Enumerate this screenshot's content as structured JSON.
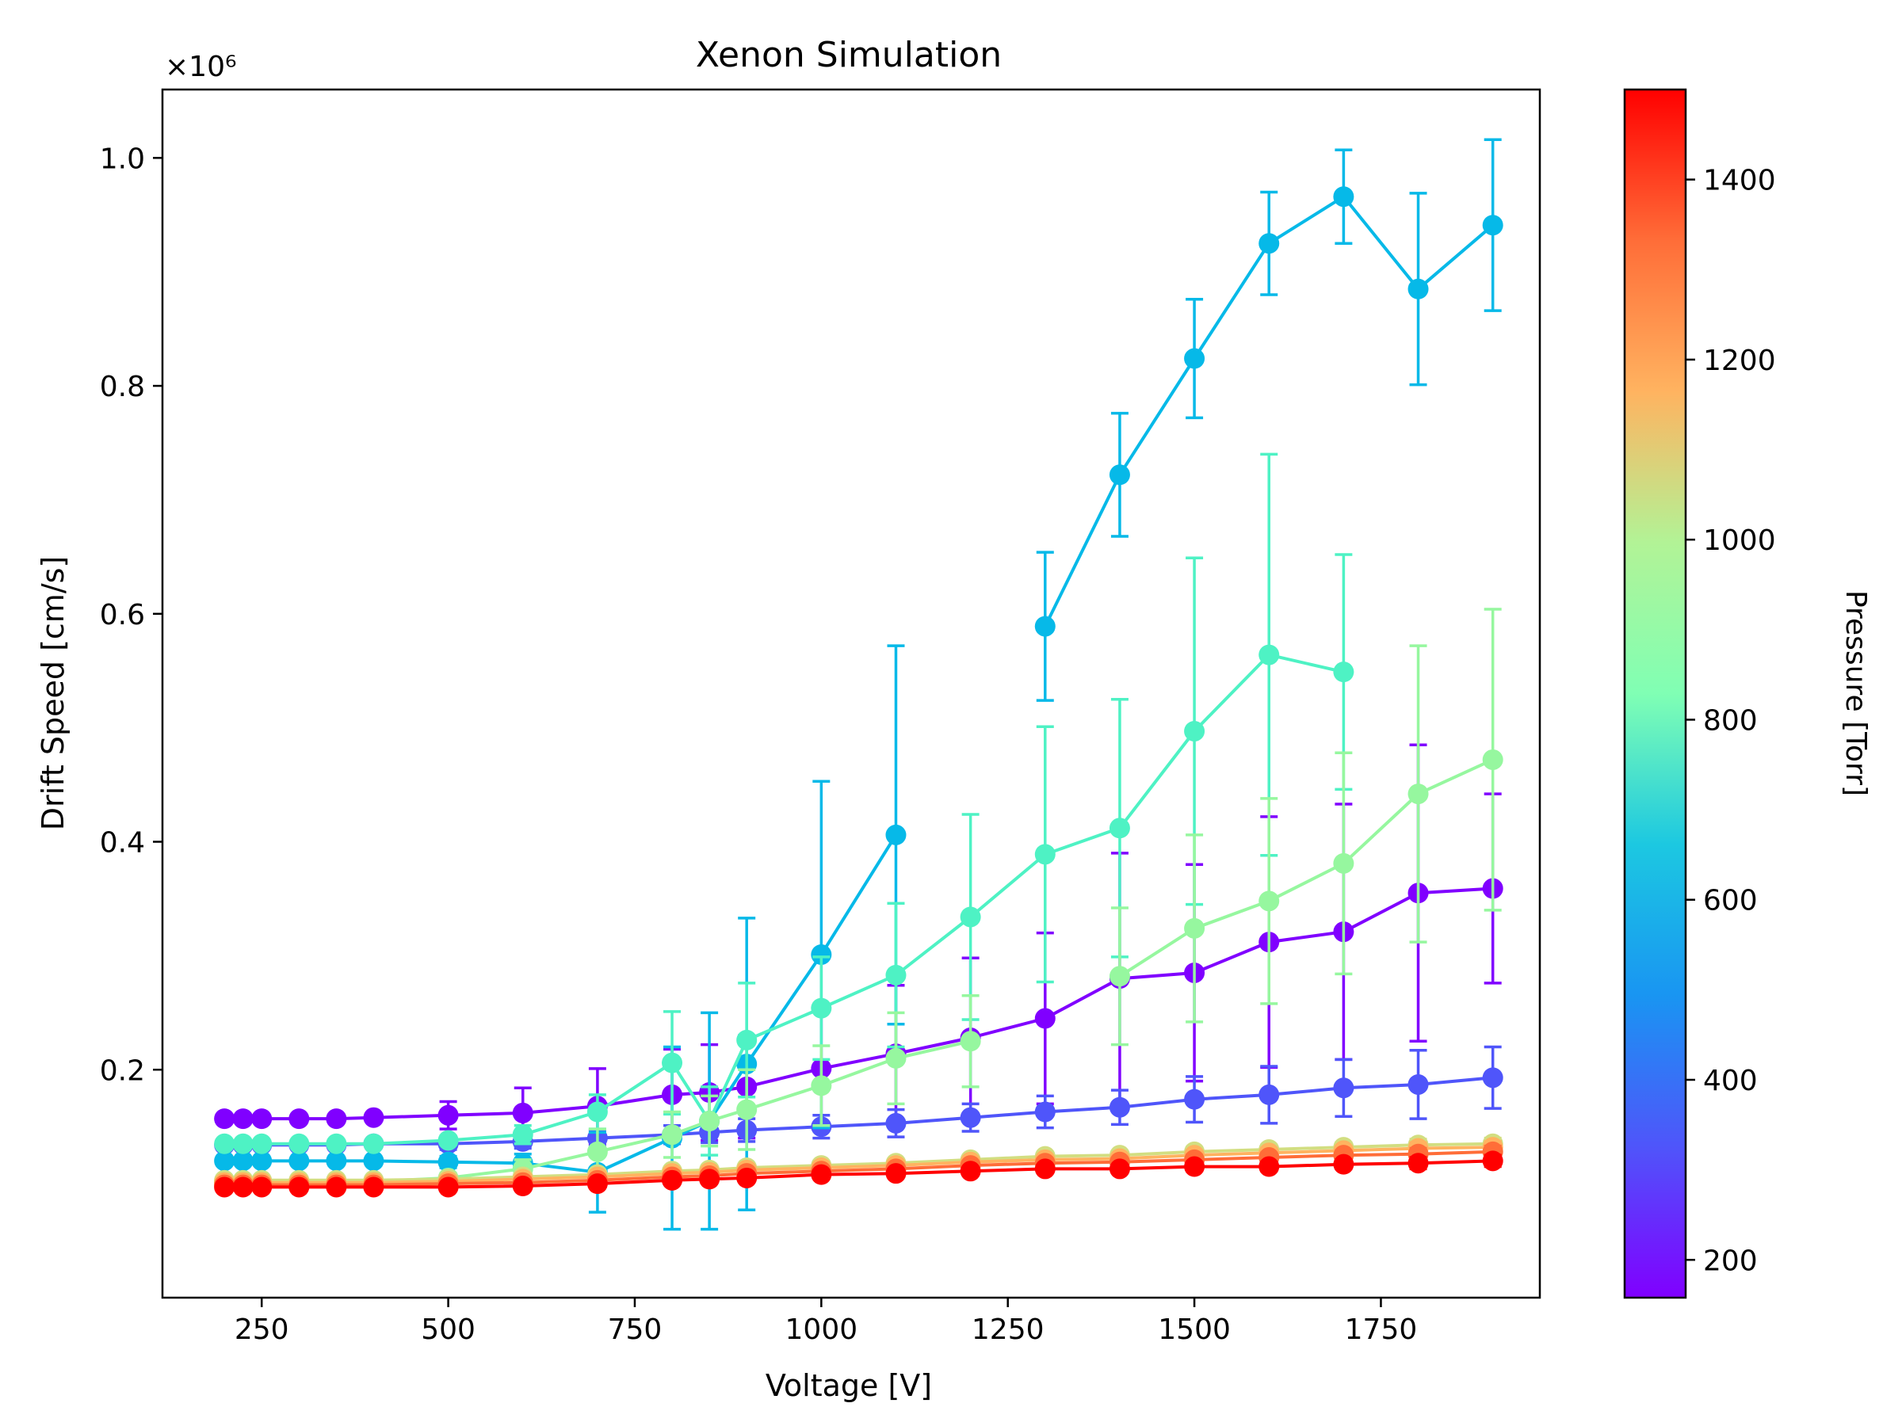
{
  "chart_data": {
    "type": "line",
    "title": "Xenon Simulation",
    "xlabel": "Voltage [V]",
    "ylabel": "Drift Speed [cm/s]",
    "y_scale_label": "×10⁶",
    "xlim": [
      117,
      1963
    ],
    "ylim": [
      0.0,
      1.06
    ],
    "x_ticks": [
      250,
      500,
      750,
      1000,
      1250,
      1500,
      1750
    ],
    "y_ticks": [
      0.2,
      0.4,
      0.6,
      0.8,
      1.0
    ],
    "y_tick_labels": [
      "0.2",
      "0.4",
      "0.6",
      "0.8",
      "1.0"
    ],
    "grid": false,
    "colorbar": {
      "label": "Pressure [Torr]",
      "min": 158,
      "max": 1500,
      "ticks": [
        200,
        400,
        600,
        800,
        1000,
        1200,
        1400
      ],
      "colormap": "rainbow"
    },
    "x": [
      200,
      225,
      250,
      300,
      350,
      400,
      500,
      600,
      700,
      800,
      850,
      900,
      1000,
      1100,
      1200,
      1300,
      1400,
      1500,
      1600,
      1700,
      1800,
      1900
    ],
    "series": [
      {
        "pressure": 200,
        "color": "#8000ff",
        "values": [
          0.157,
          0.157,
          0.157,
          0.157,
          0.157,
          0.158,
          0.16,
          0.162,
          0.168,
          0.178,
          0.18,
          0.185,
          0.201,
          0.214,
          0.228,
          0.245,
          0.28,
          0.285,
          0.312,
          0.321,
          0.355,
          0.359
        ],
        "errors": [
          0.002,
          0.002,
          0.002,
          0.002,
          0.002,
          0.003,
          0.012,
          0.022,
          0.033,
          0.04,
          0.042,
          0.045,
          0.05,
          0.06,
          0.07,
          0.075,
          0.11,
          0.095,
          0.11,
          0.112,
          0.13,
          0.083
        ]
      },
      {
        "pressure": 300,
        "color": "#4f55fa",
        "values": [
          0.134,
          0.134,
          0.134,
          0.134,
          0.134,
          0.135,
          0.135,
          0.137,
          0.14,
          0.143,
          0.145,
          0.147,
          0.15,
          0.153,
          0.158,
          0.163,
          0.167,
          0.174,
          0.178,
          0.184,
          0.187,
          0.193
        ],
        "errors": [
          0.003,
          0.003,
          0.003,
          0.003,
          0.003,
          0.003,
          0.005,
          0.006,
          0.007,
          0.008,
          0.009,
          0.01,
          0.01,
          0.012,
          0.012,
          0.014,
          0.015,
          0.02,
          0.025,
          0.025,
          0.03,
          0.027
        ]
      },
      {
        "pressure": 450,
        "color": "#06b9e8",
        "values": [
          0.12,
          0.12,
          0.12,
          0.12,
          0.12,
          0.12,
          0.119,
          0.118,
          0.11,
          0.14,
          0.155,
          0.205,
          0.301,
          0.406,
          null,
          0.589,
          0.722,
          0.824,
          0.925,
          0.966,
          0.885,
          0.941
        ],
        "errors": [
          0.003,
          0.003,
          0.003,
          0.003,
          0.003,
          0.003,
          0.005,
          0.008,
          0.035,
          0.08,
          0.095,
          0.128,
          0.152,
          0.166,
          null,
          0.065,
          0.054,
          0.052,
          0.045,
          0.041,
          0.084,
          0.075
        ]
      },
      {
        "pressure": 650,
        "color": "#4ef2c4",
        "values": [
          0.135,
          0.135,
          0.135,
          0.135,
          0.135,
          0.135,
          0.138,
          0.143,
          0.163,
          0.206,
          0.155,
          0.226,
          0.254,
          0.283,
          0.334,
          0.389,
          0.412,
          0.497,
          0.564,
          0.549,
          null,
          null
        ],
        "errors": [
          0.003,
          0.003,
          0.003,
          0.003,
          0.003,
          0.003,
          0.004,
          0.008,
          0.015,
          0.045,
          0.03,
          0.05,
          0.045,
          0.063,
          0.09,
          0.112,
          0.113,
          0.152,
          0.176,
          0.103,
          null,
          null
        ]
      },
      {
        "pressure": 850,
        "color": "#96f79f",
        "values": [
          0.102,
          0.102,
          0.102,
          0.102,
          0.102,
          0.102,
          0.105,
          0.113,
          0.128,
          0.143,
          0.155,
          0.165,
          0.186,
          0.21,
          0.225,
          null,
          0.282,
          0.324,
          0.348,
          0.381,
          0.442,
          0.472
        ],
        "errors": [
          0.002,
          0.002,
          0.002,
          0.002,
          0.002,
          0.002,
          0.004,
          0.008,
          0.02,
          0.02,
          0.022,
          0.035,
          0.035,
          0.04,
          0.04,
          null,
          0.06,
          0.082,
          0.09,
          0.097,
          0.13,
          0.132
        ]
      },
      {
        "pressure": 1050,
        "color": "#d2de81",
        "values": [
          0.103,
          0.103,
          0.103,
          0.103,
          0.103,
          0.103,
          0.104,
          0.106,
          0.108,
          0.111,
          0.112,
          0.114,
          0.116,
          0.118,
          0.121,
          0.124,
          0.125,
          0.128,
          0.13,
          0.132,
          0.134,
          0.135
        ],
        "errors": [
          0.001,
          0.001,
          0.001,
          0.001,
          0.001,
          0.001,
          0.001,
          0.002,
          0.002,
          0.002,
          0.002,
          0.002,
          0.002,
          0.003,
          0.003,
          0.003,
          0.003,
          0.004,
          0.004,
          0.004,
          0.005,
          0.005
        ]
      },
      {
        "pressure": 1200,
        "color": "#ffb360",
        "values": [
          0.101,
          0.101,
          0.101,
          0.101,
          0.101,
          0.101,
          0.102,
          0.104,
          0.106,
          0.109,
          0.11,
          0.112,
          0.114,
          0.116,
          0.119,
          0.121,
          0.122,
          0.125,
          0.127,
          0.129,
          0.131,
          0.132
        ],
        "errors": [
          0.001,
          0.001,
          0.001,
          0.001,
          0.001,
          0.001,
          0.001,
          0.002,
          0.002,
          0.002,
          0.002,
          0.002,
          0.002,
          0.003,
          0.003,
          0.003,
          0.003,
          0.004,
          0.004,
          0.004,
          0.005,
          0.005
        ]
      },
      {
        "pressure": 1350,
        "color": "#ff6d38",
        "values": [
          0.099,
          0.099,
          0.099,
          0.099,
          0.099,
          0.099,
          0.1,
          0.101,
          0.103,
          0.106,
          0.107,
          0.109,
          0.111,
          0.113,
          0.116,
          0.118,
          0.119,
          0.121,
          0.123,
          0.125,
          0.126,
          0.128
        ],
        "errors": [
          0.001,
          0.001,
          0.001,
          0.001,
          0.001,
          0.001,
          0.001,
          0.002,
          0.002,
          0.002,
          0.002,
          0.002,
          0.002,
          0.003,
          0.003,
          0.003,
          0.003,
          0.004,
          0.004,
          0.004,
          0.005,
          0.005
        ]
      },
      {
        "pressure": 1500,
        "color": "#ff0000",
        "values": [
          0.097,
          0.097,
          0.097,
          0.097,
          0.097,
          0.097,
          0.097,
          0.098,
          0.1,
          0.103,
          0.104,
          0.105,
          0.108,
          0.109,
          0.111,
          0.113,
          0.113,
          0.115,
          0.115,
          0.117,
          0.118,
          0.12
        ],
        "errors": [
          0.001,
          0.001,
          0.001,
          0.001,
          0.001,
          0.001,
          0.001,
          0.002,
          0.002,
          0.002,
          0.002,
          0.002,
          0.002,
          0.003,
          0.003,
          0.003,
          0.003,
          0.004,
          0.004,
          0.004,
          0.005,
          0.005
        ]
      }
    ]
  }
}
